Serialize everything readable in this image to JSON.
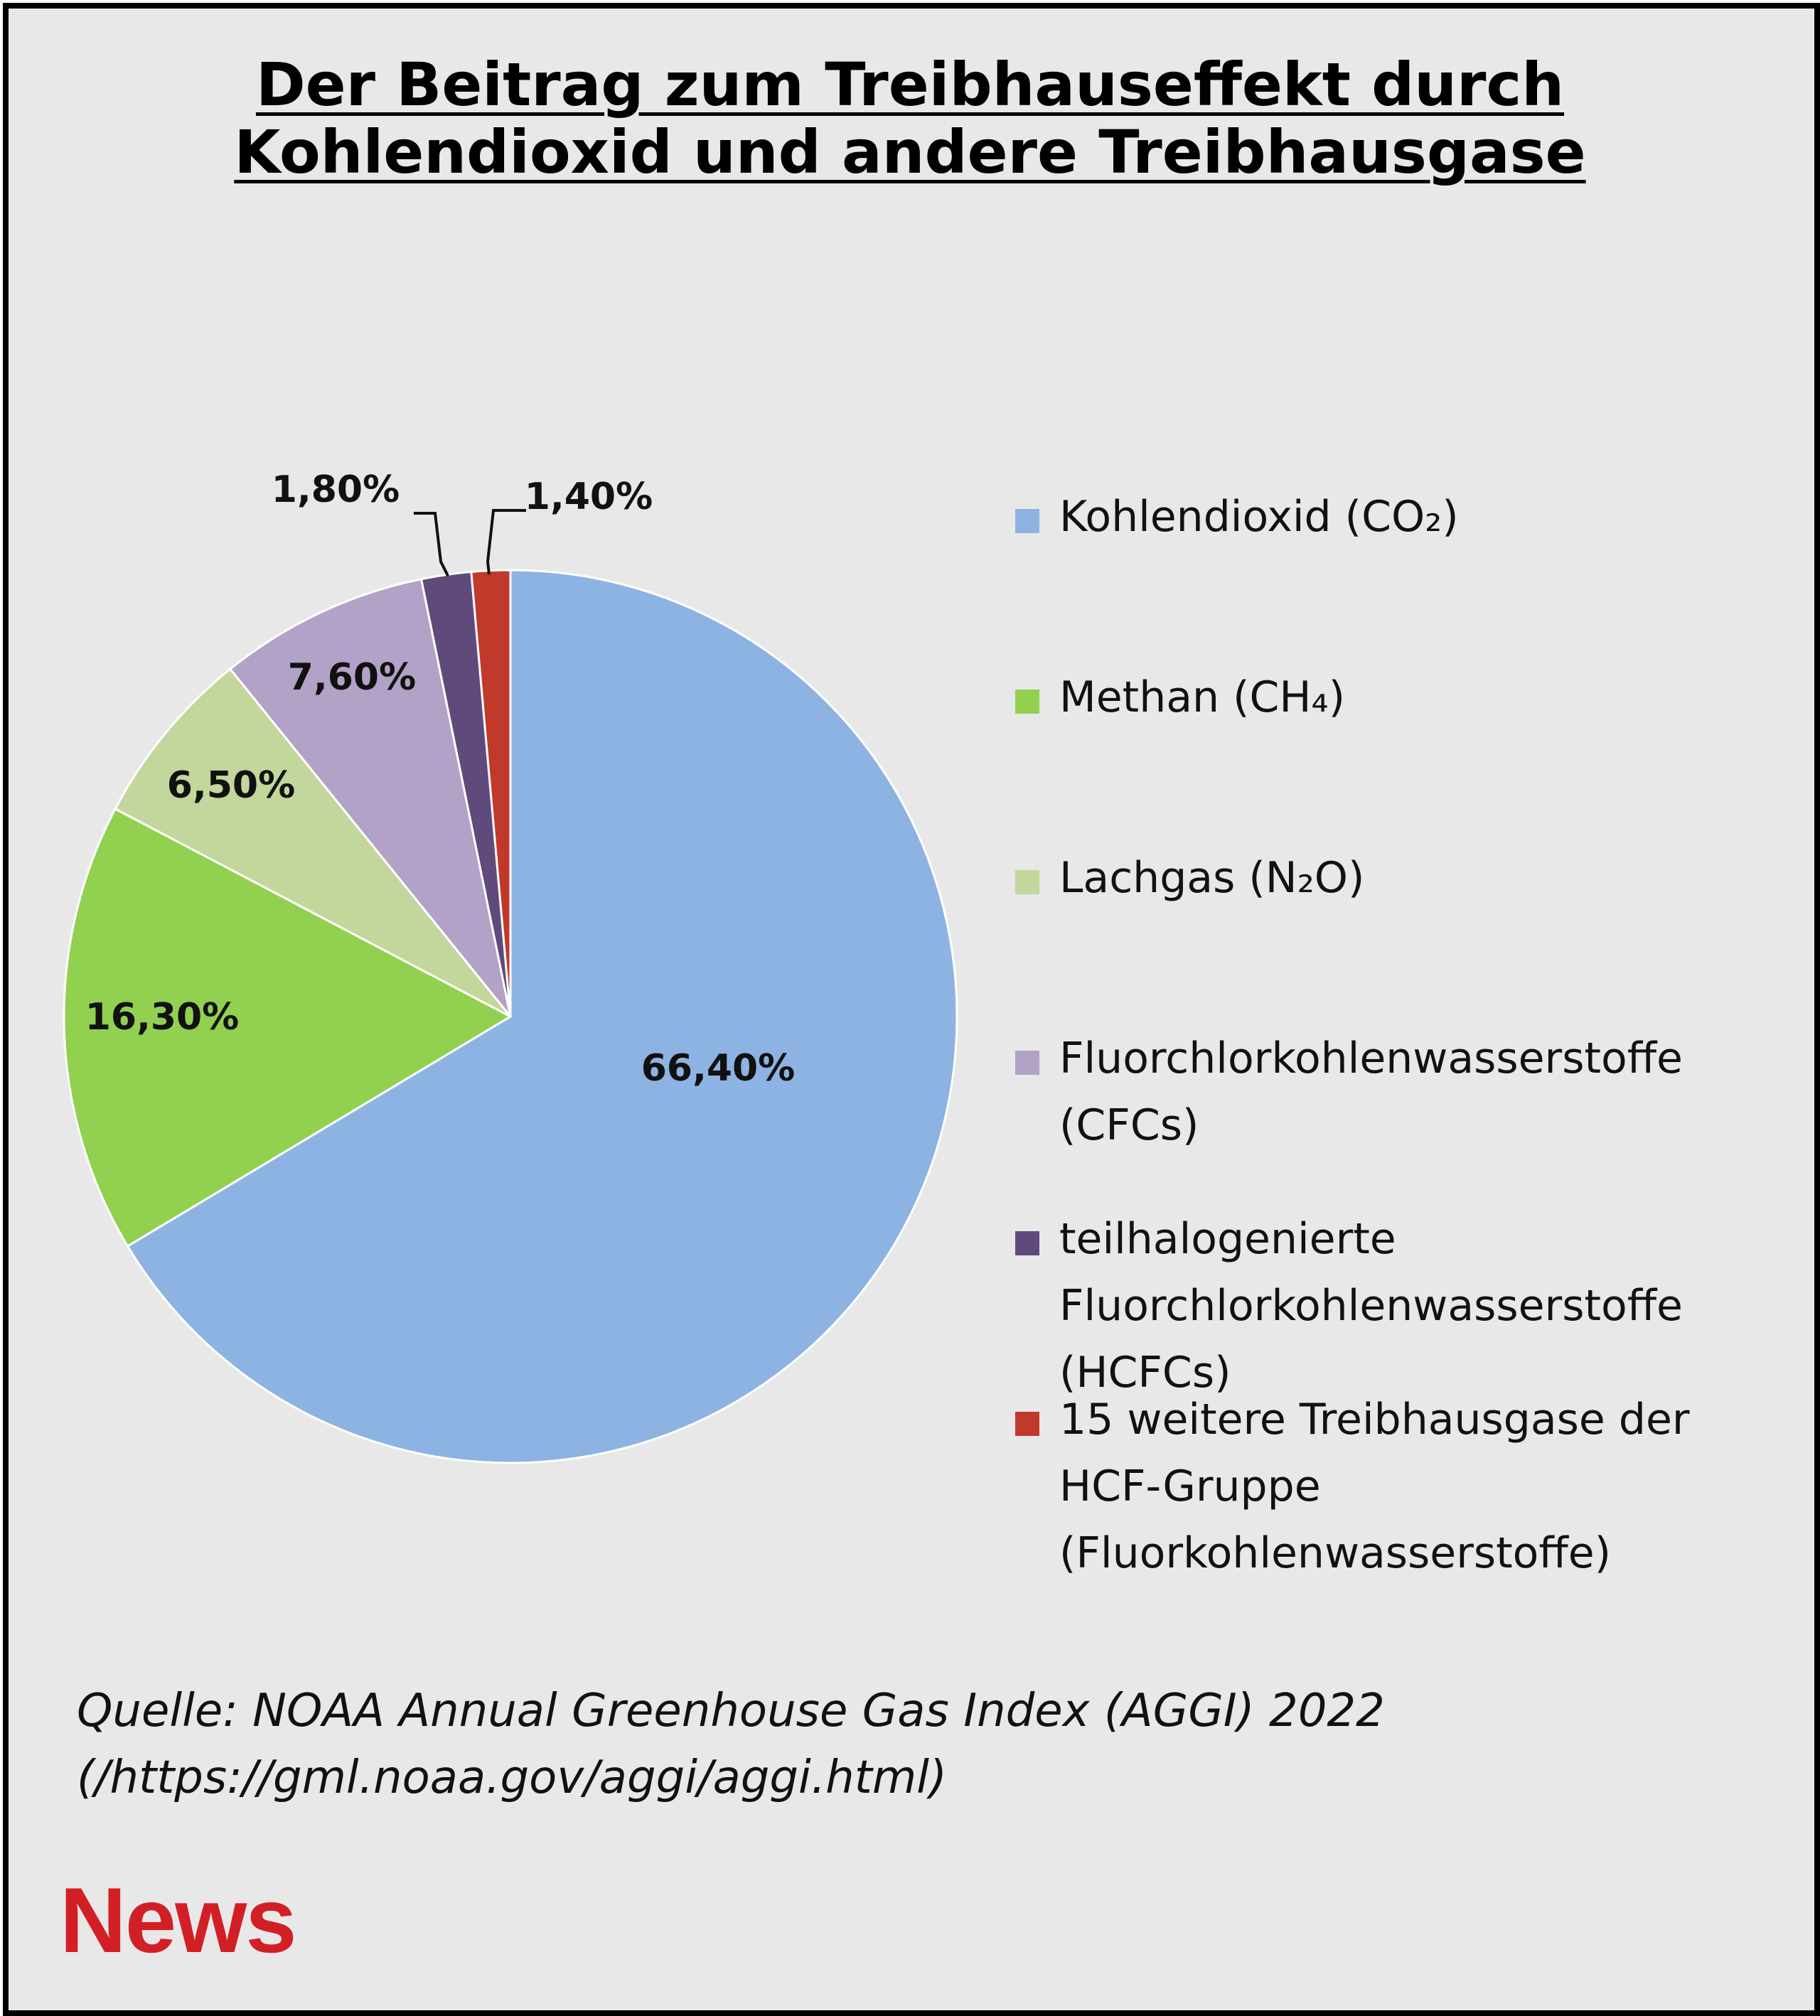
{
  "title": {
    "line1": "Der Beitrag zum Treibhauseffekt durch",
    "line2": "Kohlendioxid  und andere Treibhausgase"
  },
  "chart_data": {
    "type": "pie",
    "title": "Der Beitrag zum Treibhauseffekt durch Kohlendioxid  und andere Treibhausgase",
    "legend_position": "right",
    "slices": [
      {
        "name": "Kohlendioxid  (CO₂)",
        "value": 66.4,
        "label": "66,40%",
        "color": "#8db3e2"
      },
      {
        "name": "Methan (CH₄)",
        "value": 16.3,
        "label": "16,30%",
        "color": "#92d050"
      },
      {
        "name": "Lachgas (N₂O)",
        "value": 6.5,
        "label": "6,50%",
        "color": "#c3d69b"
      },
      {
        "name": "Fluorchlorkohlenwasserstoffe (CFCs)",
        "value": 7.6,
        "label": "7,60%",
        "color": "#b3a2c7"
      },
      {
        "name": "teilhalogenierte Fluorchlorkohlenwasserstoffe (HCFCs)",
        "value": 1.8,
        "label": "1,80%",
        "color": "#604a7b"
      },
      {
        "name": "15 weitere Treibhausgase der HCF-Gruppe (Fluorkohlenwasserstoffe)",
        "value": 1.4,
        "label": "1,40%",
        "color": "#c0392b"
      }
    ]
  },
  "legend": {
    "items": [
      {
        "lines": [
          "Kohlendioxid  (CO₂)"
        ]
      },
      {
        "lines": [
          "Methan (CH₄)"
        ]
      },
      {
        "lines": [
          "Lachgas (N₂O)"
        ]
      },
      {
        "lines": [
          "Fluorchlorkohlenwasserstoffe",
          "(CFCs)"
        ]
      },
      {
        "lines": [
          "teilhalogenierte",
          "Fluorchlorkohlenwasserstoffe",
          "(HCFCs)"
        ]
      },
      {
        "lines": [
          "15 weitere Treibhausgase der",
          "HCF-Gruppe",
          "(Fluorkohlenwasserstoffe)"
        ]
      }
    ]
  },
  "source": {
    "line1": "Quelle: NOAA Annual Greenhouse Gas Index (AGGI) 2022",
    "line2": "(/https://gml.noaa.gov/aggi/aggi.html)"
  },
  "logo": {
    "text": "News",
    "color": "#d21f26"
  }
}
